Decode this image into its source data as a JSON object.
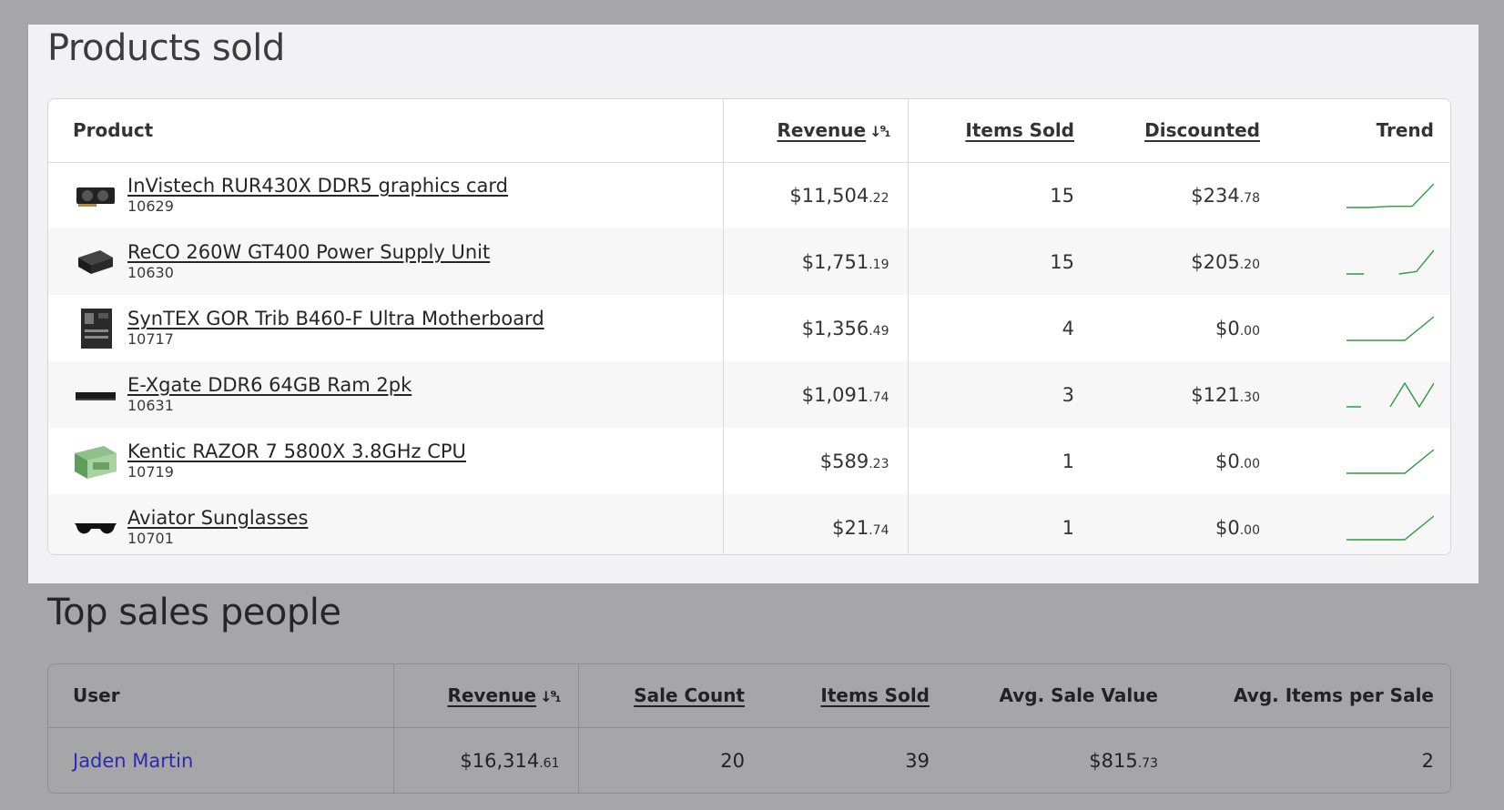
{
  "products_section": {
    "title": "Products sold",
    "columns": {
      "product": "Product",
      "revenue": "Revenue",
      "items_sold": "Items Sold",
      "discounted": "Discounted",
      "trend": "Trend"
    },
    "sort_icon": "sort-descending-icon",
    "rows": [
      {
        "name": "InVistech RUR430X DDR5 graphics card",
        "sku": "10629",
        "revenue": "$11,504",
        "revenue_cents": ".22",
        "items": "15",
        "discounted": "$234",
        "discounted_cents": ".78",
        "thumb": "graphics-card-icon",
        "trend": [
          0,
          0,
          0.05,
          0.05,
          1
        ]
      },
      {
        "name": "ReCO 260W GT400 Power Supply Unit",
        "sku": "10630",
        "revenue": "$1,751",
        "revenue_cents": ".19",
        "items": "15",
        "discounted": "$205",
        "discounted_cents": ".20",
        "thumb": "power-supply-icon",
        "trend": [
          0,
          0,
          null,
          0,
          0.1,
          1
        ]
      },
      {
        "name": "SynTEX GOR Trib B460-F Ultra Motherboard",
        "sku": "10717",
        "revenue": "$1,356",
        "revenue_cents": ".49",
        "items": "4",
        "discounted": "$0",
        "discounted_cents": ".00",
        "thumb": "motherboard-icon",
        "trend": [
          0,
          0,
          0,
          1
        ]
      },
      {
        "name": "E-Xgate DDR6 64GB Ram 2pk",
        "sku": "10631",
        "revenue": "$1,091",
        "revenue_cents": ".74",
        "items": "3",
        "discounted": "$121",
        "discounted_cents": ".30",
        "thumb": "ram-stick-icon",
        "trend": [
          0,
          0,
          null,
          0,
          1,
          0,
          1
        ]
      },
      {
        "name": "Kentic RAZOR 7 5800X 3.8GHz CPU",
        "sku": "10719",
        "revenue": "$589",
        "revenue_cents": ".23",
        "items": "1",
        "discounted": "$0",
        "discounted_cents": ".00",
        "thumb": "cpu-box-icon",
        "trend": [
          0,
          0,
          0,
          1
        ]
      },
      {
        "name": "Aviator Sunglasses",
        "sku": "10701",
        "revenue": "$21",
        "revenue_cents": ".74",
        "items": "1",
        "discounted": "$0",
        "discounted_cents": ".00",
        "thumb": "sunglasses-icon",
        "trend": [
          0,
          0,
          0,
          1
        ]
      }
    ],
    "trend_color": "#2e9b3a"
  },
  "sales_section": {
    "title": "Top sales people",
    "columns": {
      "user": "User",
      "revenue": "Revenue",
      "sale_count": "Sale Count",
      "items_sold": "Items Sold",
      "avg_sale_value": "Avg. Sale Value",
      "avg_items": "Avg. Items per Sale"
    },
    "rows": [
      {
        "user": "Jaden Martin",
        "revenue": "$16,314",
        "revenue_cents": ".61",
        "sale_count": "20",
        "items_sold": "39",
        "avg_sale": "$815",
        "avg_sale_cents": ".73",
        "avg_items": "2"
      }
    ]
  },
  "colors": {
    "overlay": "#a6a6a8",
    "highlight_panel": "#f2f2f4",
    "link": "#2b2ab0"
  }
}
